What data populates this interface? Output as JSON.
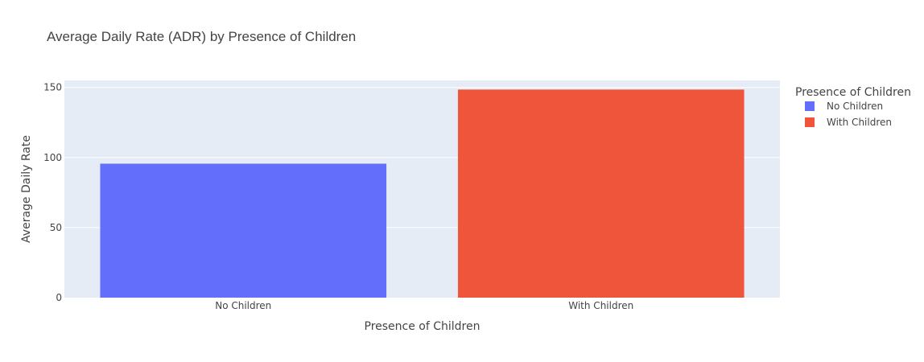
{
  "chart_data": {
    "type": "bar",
    "title": "Average Daily Rate (ADR) by Presence of Children",
    "xlabel": "Presence of Children",
    "ylabel": "Average Daily Rate",
    "categories": [
      "No Children",
      "With Children"
    ],
    "series": [
      {
        "name": "No Children",
        "category": "No Children",
        "value": 95.6,
        "color": "#636efa"
      },
      {
        "name": "With Children",
        "category": "With Children",
        "value": 148.5,
        "color": "#ef553b"
      }
    ],
    "ylim": [
      0,
      155
    ],
    "yticks": [
      0,
      50,
      100,
      150
    ],
    "grid": true,
    "plot_background": "#e5ecf6",
    "legend": {
      "title": "Presence of Children",
      "placement": "top-right"
    }
  }
}
